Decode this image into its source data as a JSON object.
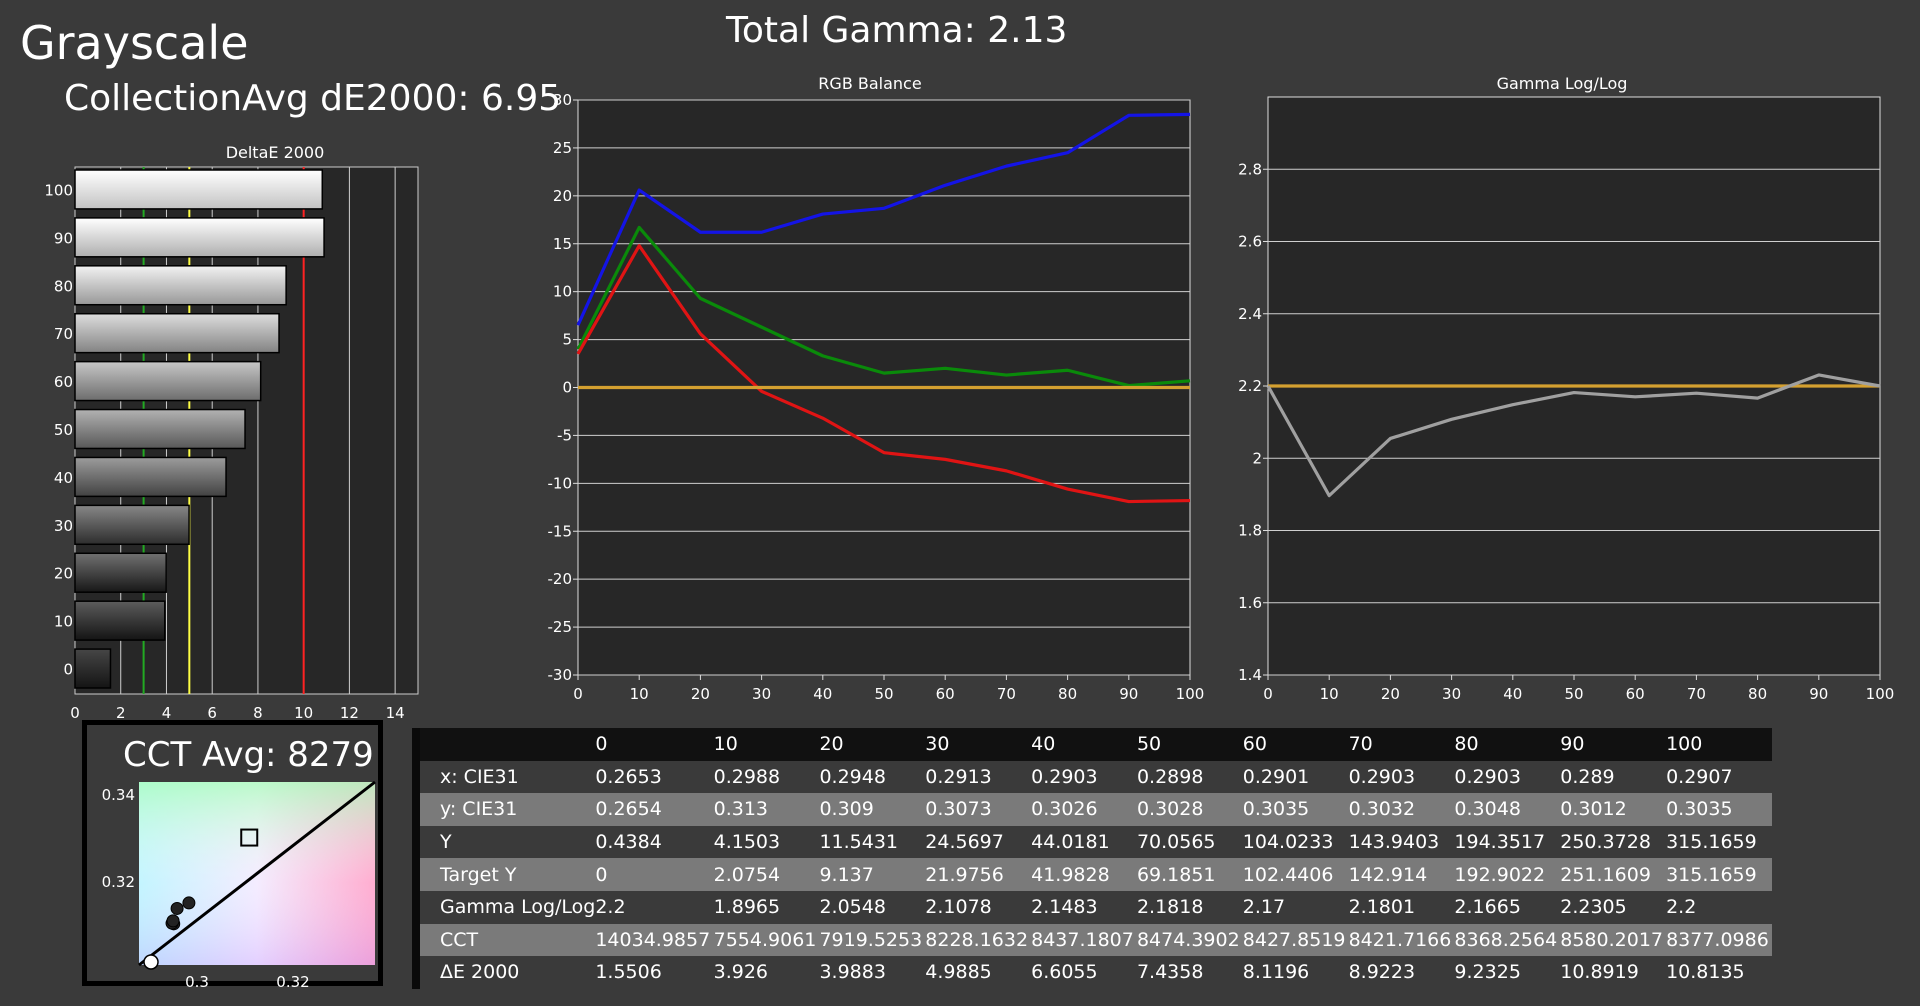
{
  "header": {
    "title": "Grayscale",
    "collection_avg": "CollectionAvg dE2000: 6.95",
    "total_gamma": "Total Gamma: 2.13"
  },
  "cct": {
    "title": "CCT Avg: 8279",
    "y_ticks": [
      "0.34",
      "0.32"
    ],
    "x_ticks": [
      "0.3",
      "0.32"
    ]
  },
  "table": {
    "columns": [
      "0",
      "10",
      "20",
      "30",
      "40",
      "50",
      "60",
      "70",
      "80",
      "90",
      "100"
    ],
    "rows": [
      {
        "label": "x: CIE31",
        "values": [
          "0.2653",
          "0.2988",
          "0.2948",
          "0.2913",
          "0.2903",
          "0.2898",
          "0.2901",
          "0.2903",
          "0.2903",
          "0.289",
          "0.2907"
        ]
      },
      {
        "label": "y: CIE31",
        "values": [
          "0.2654",
          "0.313",
          "0.309",
          "0.3073",
          "0.3026",
          "0.3028",
          "0.3035",
          "0.3032",
          "0.3048",
          "0.3012",
          "0.3035"
        ]
      },
      {
        "label": "Y",
        "values": [
          "0.4384",
          "4.1503",
          "11.5431",
          "24.5697",
          "44.0181",
          "70.0565",
          "104.0233",
          "143.9403",
          "194.3517",
          "250.3728",
          "315.1659"
        ]
      },
      {
        "label": "Target Y",
        "values": [
          "0",
          "2.0754",
          "9.137",
          "21.9756",
          "41.9828",
          "69.1851",
          "102.4406",
          "142.914",
          "192.9022",
          "251.1609",
          "315.1659"
        ]
      },
      {
        "label": "Gamma Log/Log",
        "values": [
          "2.2",
          "1.8965",
          "2.0548",
          "2.1078",
          "2.1483",
          "2.1818",
          "2.17",
          "2.1801",
          "2.1665",
          "2.2305",
          "2.2"
        ]
      },
      {
        "label": "CCT",
        "values": [
          "14034.9857",
          "7554.9061",
          "7919.5253",
          "8228.1632",
          "8437.1807",
          "8474.3902",
          "8427.8519",
          "8421.7166",
          "8368.2564",
          "8580.2017",
          "8377.0986"
        ]
      },
      {
        "label": "ΔE 2000",
        "values": [
          "1.5506",
          "3.926",
          "3.9883",
          "4.9885",
          "6.6055",
          "7.4358",
          "8.1196",
          "8.9223",
          "9.2325",
          "10.8919",
          "10.8135"
        ]
      }
    ]
  },
  "chart_data": [
    {
      "type": "bar",
      "orientation": "horizontal",
      "title": "DeltaE 2000",
      "categories": [
        "100",
        "90",
        "80",
        "70",
        "60",
        "50",
        "40",
        "30",
        "20",
        "10",
        "0"
      ],
      "values": [
        10.8135,
        10.8919,
        9.2325,
        8.9223,
        8.1196,
        7.4358,
        6.6055,
        4.9885,
        3.9883,
        3.926,
        1.5506
      ],
      "x_ticks": [
        "0",
        "2",
        "4",
        "6",
        "8",
        "10",
        "12",
        "14"
      ],
      "xlim": [
        0,
        15
      ],
      "reference_lines": [
        {
          "value": 3,
          "color": "#22aa22"
        },
        {
          "value": 5,
          "color": "#ffff44"
        },
        {
          "value": 10,
          "color": "#ff2222"
        }
      ],
      "grid": true
    },
    {
      "type": "line",
      "title": "RGB Balance",
      "x": [
        0,
        10,
        20,
        30,
        40,
        50,
        60,
        70,
        80,
        90,
        100
      ],
      "x_ticks": [
        "0",
        "10",
        "20",
        "30",
        "40",
        "50",
        "60",
        "70",
        "80",
        "90",
        "100"
      ],
      "y_ticks": [
        "30",
        "25",
        "20",
        "15",
        "10",
        "5",
        "0",
        "-5",
        "-10",
        "-15",
        "-20",
        "-25",
        "-30"
      ],
      "ylim": [
        -30,
        30
      ],
      "xlim": [
        0,
        100
      ],
      "series": [
        {
          "color": "#1414e6",
          "values": [
            6.5,
            20.6,
            16.2,
            16.2,
            18.1,
            18.7,
            21.1,
            23.1,
            24.5,
            28.4,
            28.5
          ]
        },
        {
          "color": "#0a8a0a",
          "values": [
            4.0,
            16.7,
            9.3,
            6.3,
            3.3,
            1.5,
            2.0,
            1.3,
            1.8,
            0.2,
            0.7
          ]
        },
        {
          "color": "#e01414",
          "values": [
            3.5,
            14.8,
            5.6,
            -0.4,
            -3.2,
            -6.8,
            -7.5,
            -8.7,
            -10.6,
            -11.9,
            -11.8
          ]
        },
        {
          "color": "#d4a030",
          "values": [
            0,
            0,
            0,
            0,
            0,
            0,
            0,
            0,
            0,
            0,
            0
          ]
        }
      ],
      "grid": true
    },
    {
      "type": "line",
      "title": "Gamma Log/Log",
      "x": [
        0,
        10,
        20,
        30,
        40,
        50,
        60,
        70,
        80,
        90,
        100
      ],
      "x_ticks": [
        "0",
        "10",
        "20",
        "30",
        "40",
        "50",
        "60",
        "70",
        "80",
        "90",
        "100"
      ],
      "y_ticks": [
        "2.8",
        "2.6",
        "2.4",
        "2.2",
        "2",
        "1.8",
        "1.6",
        "1.4"
      ],
      "ylim": [
        1.4,
        3.0
      ],
      "xlim": [
        0,
        100
      ],
      "series": [
        {
          "color": "#d4a030",
          "values": [
            2.2,
            2.2,
            2.2,
            2.2,
            2.2,
            2.2,
            2.2,
            2.2,
            2.2,
            2.2,
            2.2
          ]
        },
        {
          "color": "#a0a0a0",
          "values": [
            2.2,
            1.8965,
            2.0548,
            2.1078,
            2.1483,
            2.1818,
            2.17,
            2.1801,
            2.1665,
            2.2305,
            2.2
          ]
        }
      ],
      "grid": true
    },
    {
      "type": "scatter",
      "title": "CCT Avg: 8279",
      "xlim": [
        0.28,
        0.35
      ],
      "ylim": [
        0.29,
        0.346
      ],
      "points": [
        {
          "x": 0.2903,
          "y": 0.3026
        },
        {
          "x": 0.2913,
          "y": 0.3073
        },
        {
          "x": 0.2948,
          "y": 0.309
        },
        {
          "x": 0.2898,
          "y": 0.3028
        },
        {
          "x": 0.2901,
          "y": 0.3035
        }
      ],
      "target": {
        "x": 0.3127,
        "y": 0.329
      },
      "locus": [
        [
          0.28,
          0.29
        ],
        [
          0.35,
          0.346
        ]
      ]
    }
  ]
}
